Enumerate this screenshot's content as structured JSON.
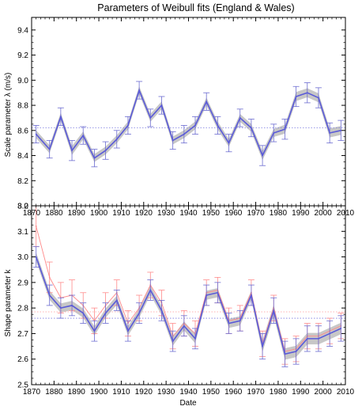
{
  "title": "Parameters of Weibull fits (England & Wales)",
  "colors": {
    "main_line": "#5a5ad8",
    "band": "#bdbdbd",
    "errorbar": "#6b6bd0",
    "secondary": "#ff8a8a",
    "ref_blue": "#7a7ae0",
    "ref_red": "#ff9a9a"
  },
  "chart_data": [
    {
      "type": "line",
      "xlabel": "",
      "ylabel": "Scale parameter λ (m/s)",
      "xlim": [
        1870,
        2010
      ],
      "ylim": [
        8.0,
        9.5
      ],
      "xticks": [
        1870,
        1880,
        1890,
        1900,
        1910,
        1920,
        1930,
        1940,
        1950,
        1960,
        1970,
        1980,
        1990,
        2000,
        2010
      ],
      "yticks": [
        8.0,
        8.2,
        8.4,
        8.6,
        8.8,
        9.0,
        9.2,
        9.4
      ],
      "ytick_labels": [
        "8.0",
        "8.2",
        "8.4",
        "8.6",
        "8.8",
        "9.0",
        "9.2",
        "9.4"
      ],
      "grid": false,
      "reference_lines": [
        {
          "y": 8.62,
          "style": "dotted",
          "color": "blue"
        }
      ],
      "x": [
        1872,
        1878,
        1883,
        1888,
        1893,
        1898,
        1903,
        1908,
        1913,
        1918,
        1923,
        1928,
        1933,
        1938,
        1943,
        1948,
        1953,
        1958,
        1963,
        1968,
        1973,
        1978,
        1983,
        1988,
        1993,
        1998,
        2003,
        2008
      ],
      "series": [
        {
          "values": [
            8.57,
            8.45,
            8.71,
            8.44,
            8.56,
            8.38,
            8.44,
            8.53,
            8.64,
            8.92,
            8.7,
            8.8,
            8.52,
            8.57,
            8.64,
            8.83,
            8.64,
            8.5,
            8.7,
            8.62,
            8.4,
            8.58,
            8.61,
            8.87,
            8.9,
            8.86,
            8.58,
            8.6
          ],
          "error": [
            0.07,
            0.07,
            0.07,
            0.08,
            0.07,
            0.07,
            0.07,
            0.07,
            0.07,
            0.07,
            0.07,
            0.07,
            0.07,
            0.07,
            0.07,
            0.07,
            0.07,
            0.07,
            0.07,
            0.07,
            0.08,
            0.07,
            0.08,
            0.08,
            0.08,
            0.08,
            0.08,
            0.08
          ]
        }
      ]
    },
    {
      "type": "line",
      "xlabel": "Date",
      "ylabel": "Shape parameter k",
      "xlim": [
        1870,
        2010
      ],
      "ylim": [
        2.5,
        3.2
      ],
      "xticks": [
        1870,
        1880,
        1890,
        1900,
        1910,
        1920,
        1930,
        1940,
        1950,
        1960,
        1970,
        1980,
        1990,
        2000,
        2010
      ],
      "yticks": [
        2.5,
        2.6,
        2.7,
        2.8,
        2.9,
        3.0,
        3.1,
        3.2
      ],
      "ytick_labels": [
        "2.5",
        "2.6",
        "2.7",
        "2.8",
        "2.9",
        "3.0",
        "3.1",
        "3.2"
      ],
      "grid": false,
      "reference_lines": [
        {
          "y": 2.76,
          "style": "dotted",
          "color": "blue"
        },
        {
          "y": 2.785,
          "style": "dotted",
          "color": "red"
        }
      ],
      "x": [
        1872,
        1878,
        1883,
        1888,
        1893,
        1898,
        1903,
        1908,
        1913,
        1918,
        1923,
        1928,
        1933,
        1938,
        1943,
        1948,
        1953,
        1958,
        1963,
        1968,
        1973,
        1978,
        1983,
        1988,
        1993,
        1998,
        2003,
        2008
      ],
      "series": [
        {
          "values": [
            3.0,
            2.85,
            2.8,
            2.81,
            2.78,
            2.71,
            2.78,
            2.83,
            2.71,
            2.78,
            2.87,
            2.79,
            2.67,
            2.73,
            2.68,
            2.85,
            2.86,
            2.74,
            2.75,
            2.85,
            2.65,
            2.79,
            2.62,
            2.63,
            2.68,
            2.68,
            2.7,
            2.72
          ],
          "error": [
            0.04,
            0.04,
            0.04,
            0.04,
            0.04,
            0.04,
            0.04,
            0.04,
            0.04,
            0.04,
            0.04,
            0.04,
            0.04,
            0.04,
            0.04,
            0.04,
            0.04,
            0.04,
            0.04,
            0.04,
            0.05,
            0.05,
            0.05,
            0.05,
            0.05,
            0.05,
            0.05,
            0.05
          ]
        },
        {
          "values": [
            3.12,
            2.92,
            2.84,
            2.85,
            2.81,
            2.75,
            2.81,
            2.86,
            2.74,
            2.8,
            2.89,
            2.82,
            2.69,
            2.74,
            2.7,
            2.86,
            2.87,
            2.75,
            2.76,
            2.86,
            2.66,
            2.8,
            2.63,
            2.64,
            2.69,
            2.69,
            2.71,
            2.73
          ],
          "error": [
            0.08,
            0.06,
            0.06,
            0.06,
            0.05,
            0.05,
            0.05,
            0.05,
            0.05,
            0.05,
            0.05,
            0.05,
            0.05,
            0.05,
            0.05,
            0.05,
            0.05,
            0.05,
            0.05,
            0.05,
            0.05,
            0.05,
            0.05,
            0.05,
            0.05,
            0.05,
            0.05,
            0.05
          ]
        }
      ]
    }
  ]
}
